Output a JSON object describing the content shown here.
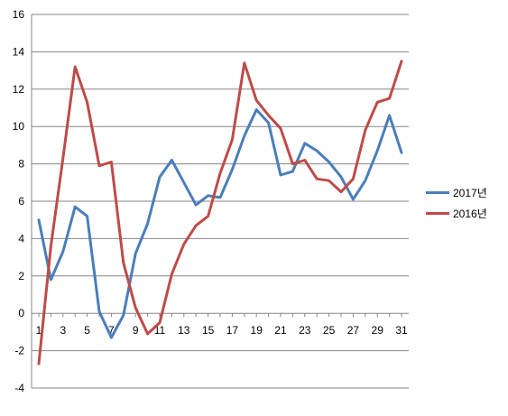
{
  "chart_data": {
    "type": "line",
    "title": "",
    "xlabel": "",
    "ylabel": "",
    "x": [
      1,
      2,
      3,
      4,
      5,
      6,
      7,
      8,
      9,
      10,
      11,
      12,
      13,
      14,
      15,
      16,
      17,
      18,
      19,
      20,
      21,
      22,
      23,
      24,
      25,
      26,
      27,
      28,
      29,
      30,
      31
    ],
    "x_tick_labels": [
      "1",
      "3",
      "5",
      "7",
      "9",
      "11",
      "13",
      "15",
      "17",
      "19",
      "21",
      "23",
      "25",
      "27",
      "29",
      "31"
    ],
    "ylim": [
      -4,
      16
    ],
    "y_ticks": [
      -4,
      -2,
      0,
      2,
      4,
      6,
      8,
      10,
      12,
      14,
      16
    ],
    "grid": "horizontal",
    "legend_position": "right",
    "series": [
      {
        "name": "2017년",
        "color": "#4a7ebb",
        "values": [
          5.0,
          1.8,
          3.3,
          5.7,
          5.2,
          0.1,
          -1.3,
          -0.1,
          3.2,
          4.8,
          7.3,
          8.2,
          7.0,
          5.8,
          6.3,
          6.2,
          7.7,
          9.5,
          10.9,
          10.2,
          7.4,
          7.6,
          9.1,
          8.7,
          8.1,
          7.3,
          6.1,
          7.1,
          8.7,
          10.6,
          8.6
        ]
      },
      {
        "name": "2016년",
        "color": "#be4b48",
        "values": [
          -2.7,
          3.6,
          8.3,
          13.2,
          11.3,
          7.9,
          8.1,
          2.7,
          0.3,
          -1.1,
          -0.5,
          2.1,
          3.7,
          4.7,
          5.2,
          7.5,
          9.3,
          13.4,
          11.4,
          10.6,
          9.9,
          8.0,
          8.2,
          7.2,
          7.1,
          6.5,
          7.2,
          9.8,
          11.3,
          11.5,
          13.5
        ]
      }
    ]
  }
}
